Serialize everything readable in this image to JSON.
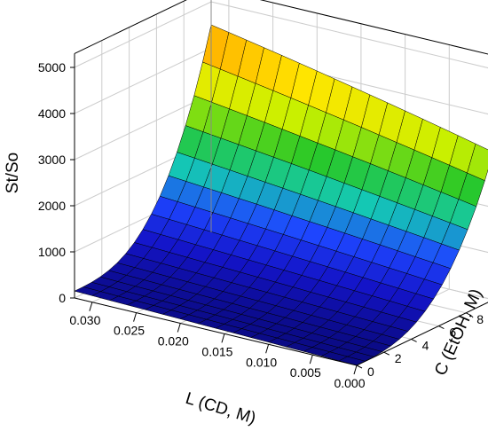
{
  "chart_data": {
    "type": "surface3d",
    "zlabel": "St/So",
    "xlabel": "L (CD, M)",
    "ylabel": "C (EtOH, M)",
    "x_ticks": [
      "0.030",
      "0.025",
      "0.020",
      "0.015",
      "0.010",
      "0.005",
      "0.000"
    ],
    "x_tick_values": [
      0.03,
      0.025,
      0.02,
      0.015,
      0.01,
      0.005,
      0.0
    ],
    "y_ticks": [
      "0",
      "2",
      "4",
      "6",
      "8",
      "10"
    ],
    "y_tick_values": [
      0,
      2,
      4,
      6,
      8,
      10
    ],
    "z_ticks": [
      "0",
      "1000",
      "2000",
      "3000",
      "4000",
      "5000"
    ],
    "z_tick_values": [
      0,
      1000,
      2000,
      3000,
      4000,
      5000
    ],
    "xlim": [
      0.032,
      0.0
    ],
    "ylim": [
      0,
      10
    ],
    "zlim": [
      0,
      5000
    ],
    "surface": {
      "x": [
        0.032,
        0.03,
        0.028,
        0.026,
        0.024,
        0.022,
        0.02,
        0.018,
        0.016,
        0.014,
        0.012,
        0.01,
        0.008,
        0.006,
        0.004,
        0.002,
        0.0
      ],
      "y": [
        0,
        0.625,
        1.25,
        1.875,
        2.5,
        3.125,
        3.75,
        4.375,
        5,
        5.625,
        6.25,
        6.875,
        7.5,
        8.125,
        8.75,
        9.375,
        10
      ],
      "corner_values": {
        "x0.032_y0": 150,
        "x0_y0": 0,
        "x0.032_y10": 4500,
        "x0_y10": 3200
      }
    },
    "colormap": [
      "#0a0a82",
      "#1414c8",
      "#1e46ff",
      "#14c8b4",
      "#28c828",
      "#c8f000",
      "#ffe600",
      "#ff9600",
      "#ff5000"
    ]
  }
}
